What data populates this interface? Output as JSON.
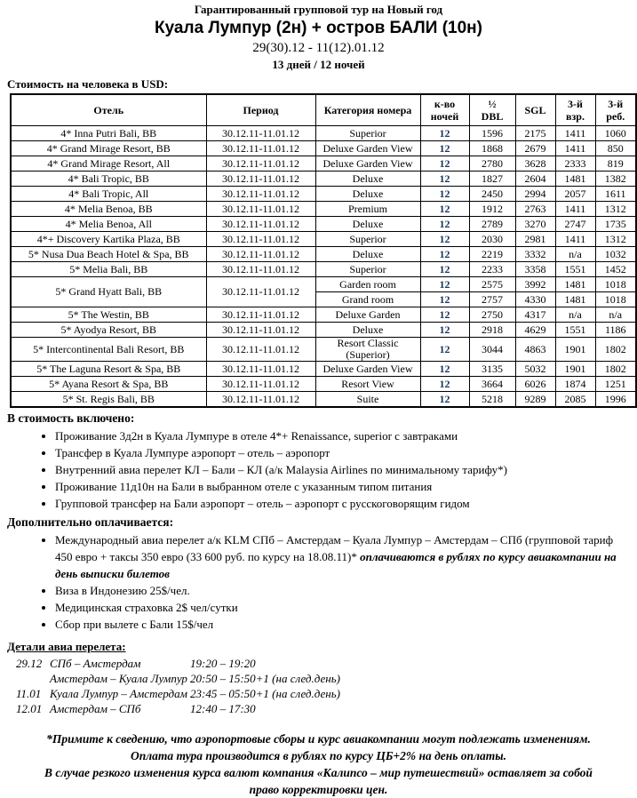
{
  "header": {
    "line1": "Гарантированный групповой тур на Новый год",
    "title": "Куала Лумпур (2н) + остров БАЛИ (10н)",
    "dates": "29(30).12 - 11(12).01.12",
    "duration": "13 дней / 12 ночей",
    "price_label": "Стоимость на человека в USD:"
  },
  "table": {
    "nights_color": "#17365D",
    "headers": [
      "Отель",
      "Период",
      "Категория номера",
      "к-во\nночей",
      "½\nDBL",
      "SGL",
      "3-й\nвзр.",
      "3-й\nреб."
    ],
    "rows": [
      {
        "hotel": "4* Inna Putri Bali, BB",
        "period": "30.12.11-11.01.12",
        "category": "Superior",
        "nights": "12",
        "dbl": "1596",
        "sgl": "2175",
        "adult3": "1411",
        "child3": "1060"
      },
      {
        "hotel": "4* Grand Mirage Resort, BB",
        "period": "30.12.11-11.01.12",
        "category": "Deluxe Garden View",
        "nights": "12",
        "dbl": "1868",
        "sgl": "2679",
        "adult3": "1411",
        "child3": "850"
      },
      {
        "hotel": "4* Grand Mirage Resort, All",
        "period": "30.12.11-11.01.12",
        "category": "Deluxe Garden View",
        "nights": "12",
        "dbl": "2780",
        "sgl": "3628",
        "adult3": "2333",
        "child3": "819"
      },
      {
        "hotel": "4* Bali Tropic, BB",
        "period": "30.12.11-11.01.12",
        "category": "Deluxe",
        "nights": "12",
        "dbl": "1827",
        "sgl": "2604",
        "adult3": "1481",
        "child3": "1382"
      },
      {
        "hotel": "4* Bali Tropic, All",
        "period": "30.12.11-11.01.12",
        "category": "Deluxe",
        "nights": "12",
        "dbl": "2450",
        "sgl": "2994",
        "adult3": "2057",
        "child3": "1611"
      },
      {
        "hotel": "4* Melia Benoa, BB",
        "period": "30.12.11-11.01.12",
        "category": "Premium",
        "nights": "12",
        "dbl": "1912",
        "sgl": "2763",
        "adult3": "1411",
        "child3": "1312"
      },
      {
        "hotel": "4* Melia Benoa, All",
        "period": "30.12.11-11.01.12",
        "category": "Deluxe",
        "nights": "12",
        "dbl": "2789",
        "sgl": "3270",
        "adult3": "2747",
        "child3": "1735"
      },
      {
        "hotel": "4*+ Discovery Kartika Plaza, BB",
        "period": "30.12.11-11.01.12",
        "category": "Superior",
        "nights": "12",
        "dbl": "2030",
        "sgl": "2981",
        "adult3": "1411",
        "child3": "1312"
      },
      {
        "hotel": "5* Nusa Dua Beach Hotel & Spa, BB",
        "period": "30.12.11-11.01.12",
        "category": "Deluxe",
        "nights": "12",
        "dbl": "2219",
        "sgl": "3332",
        "adult3": "n/a",
        "child3": "1032"
      },
      {
        "hotel": "5* Melia Bali, BB",
        "period": "30.12.11-11.01.12",
        "category": "Superior",
        "nights": "12",
        "dbl": "2233",
        "sgl": "3358",
        "adult3": "1551",
        "child3": "1452"
      },
      {
        "hotel": "5* Grand Hyatt Bali, BB",
        "period": "30.12.11-11.01.12",
        "subrows": [
          {
            "category": "Garden room",
            "nights": "12",
            "dbl": "2575",
            "sgl": "3992",
            "adult3": "1481",
            "child3": "1018"
          },
          {
            "category": "Grand room",
            "nights": "12",
            "dbl": "2757",
            "sgl": "4330",
            "adult3": "1481",
            "child3": "1018"
          }
        ]
      },
      {
        "hotel": "5* The Westin, BB",
        "period": "30.12.11-11.01.12",
        "category": "Deluxe Garden",
        "nights": "12",
        "dbl": "2750",
        "sgl": "4317",
        "adult3": "n/a",
        "child3": "n/a"
      },
      {
        "hotel": "5* Ayodya Resort, BB",
        "period": "30.12.11-11.01.12",
        "category": "Deluxe",
        "nights": "12",
        "dbl": "2918",
        "sgl": "4629",
        "adult3": "1551",
        "child3": "1186"
      },
      {
        "hotel": "5* Intercontinental Bali Resort, BB",
        "period": "30.12.11-11.01.12",
        "category": "Resort Classic (Superior)",
        "nights": "12",
        "dbl": "3044",
        "sgl": "4863",
        "adult3": "1901",
        "child3": "1802"
      },
      {
        "hotel": "5* The Laguna Resort & Spa, BB",
        "period": "30.12.11-11.01.12",
        "category": "Deluxe Garden View",
        "nights": "12",
        "dbl": "3135",
        "sgl": "5032",
        "adult3": "1901",
        "child3": "1802"
      },
      {
        "hotel": "5* Ayana Resort & Spa, BB",
        "period": "30.12.11-11.01.12",
        "category": "Resort View",
        "nights": "12",
        "dbl": "3664",
        "sgl": "6026",
        "adult3": "1874",
        "child3": "1251"
      },
      {
        "hotel": "5* St. Regis Bali, BB",
        "period": "30.12.11-11.01.12",
        "category": "Suite",
        "nights": "12",
        "dbl": "5218",
        "sgl": "9289",
        "adult3": "2085",
        "child3": "1996"
      }
    ]
  },
  "included": {
    "title": "В стоимость включено:",
    "items": [
      "Проживание 3д2н в Куала Лумпуре в отеле 4*+ Renaissance, superior с завтраками",
      "Трансфер в Куала Лумпуре аэропорт – отель – аэропорт",
      "Внутренний авиа перелет КЛ – Бали – КЛ (а/к Malaysia Airlines по минимальному тарифу*)",
      "Проживание 11д10н на Бали в выбранном отеле с указанным типом питания",
      "Групповой трансфер на Бали аэропорт – отель – аэропорт с русскоговорящим гидом"
    ]
  },
  "extra": {
    "title": "Дополнительно оплачивается:",
    "items": [
      [
        {
          "t": "Международный авиа перелет а/к KLM  СПб – Амстердам – Куала Лумпур – Амстердам – СПб (групповой тариф 450 евро + таксы 350 евро (33 600 руб. по курсу на 18.08.11)* ",
          "b": false
        },
        {
          "t": "оплачиваются в рублях по курсу авиакомпании на день выписки билетов",
          "b": true
        }
      ],
      [
        {
          "t": "Виза в Индонезию 25$/чел.",
          "b": false
        }
      ],
      [
        {
          "t": "Медицинская страховка 2$ чел/сутки",
          "b": false
        }
      ],
      [
        {
          "t": "Сбор при вылете с Бали 15$/чел",
          "b": false
        }
      ]
    ]
  },
  "flights": {
    "title": "Детали авиа перелета:",
    "rows": [
      {
        "date": "29.12",
        "route": "СПб – Амстердам",
        "time": "19:20 – 19:20"
      },
      {
        "date": "",
        "route": "Амстердам – Куала Лумпур",
        "time": "20:50 – 15:50+1 (на след.день)"
      },
      {
        "date": "11.01",
        "route": "Куала Лумпур – Амстердам",
        "time": "23:45 – 05:50+1 (на след.день)"
      },
      {
        "date": "12.01",
        "route": "Амстердам – СПб",
        "time": "12:40 – 17:30"
      }
    ]
  },
  "footer": {
    "lines": [
      "*Примите к сведению, что аэропортовые сборы и курс авиакомпании могут подлежать изменениям.",
      "Оплата тура производится в рублях по курсу ЦБ+2% на день оплаты.",
      "В случае резкого изменения курса валют компания «Калипсо – мир путешествий» оставляет за собой",
      "право корректировки цен."
    ]
  }
}
